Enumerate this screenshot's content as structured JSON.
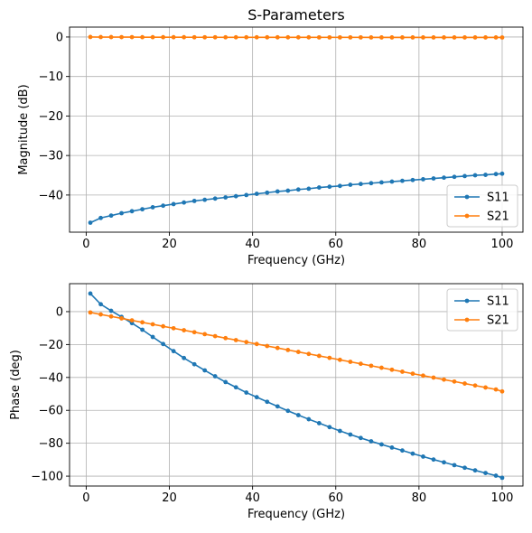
{
  "chart_data": [
    {
      "type": "line",
      "title": "S-Parameters",
      "xlabel": "Frequency (GHz)",
      "ylabel": "Magnitude (dB)",
      "xlim": [
        -4,
        105
      ],
      "ylim": [
        -49.4,
        2.5
      ],
      "xticks": [
        0,
        20,
        40,
        60,
        80,
        100
      ],
      "yticks": [
        0,
        -10,
        -20,
        -30,
        -40
      ],
      "xtick_labels": [
        "0",
        "20",
        "40",
        "60",
        "80",
        "100"
      ],
      "ytick_labels": [
        "0",
        "−10",
        "−20",
        "−30",
        "−40"
      ],
      "grid": true,
      "legend_position": "lower-right",
      "series": [
        {
          "name": "S11",
          "color": "#1f77b4",
          "x": [
            1,
            3.5,
            6,
            8.5,
            11,
            13.5,
            16,
            18.5,
            21,
            23.5,
            26,
            28.5,
            31,
            33.5,
            36,
            38.5,
            41,
            43.5,
            46,
            48.5,
            51,
            53.5,
            56,
            58.5,
            61,
            63.5,
            66,
            68.5,
            71,
            73.5,
            76,
            78.5,
            81,
            83.5,
            86,
            88.5,
            91,
            93.5,
            96,
            98.5,
            100
          ],
          "y": [
            -47.0,
            -45.8,
            -45.2,
            -44.6,
            -44.1,
            -43.6,
            -43.1,
            -42.7,
            -42.3,
            -41.9,
            -41.5,
            -41.2,
            -40.9,
            -40.6,
            -40.3,
            -40.0,
            -39.7,
            -39.4,
            -39.1,
            -38.9,
            -38.6,
            -38.4,
            -38.1,
            -37.9,
            -37.7,
            -37.4,
            -37.2,
            -37.0,
            -36.8,
            -36.6,
            -36.4,
            -36.2,
            -36.0,
            -35.8,
            -35.6,
            -35.4,
            -35.2,
            -35.0,
            -34.9,
            -34.7,
            -34.6
          ]
        },
        {
          "name": "S21",
          "color": "#ff7f0e",
          "x": [
            1,
            3.5,
            6,
            8.5,
            11,
            13.5,
            16,
            18.5,
            21,
            23.5,
            26,
            28.5,
            31,
            33.5,
            36,
            38.5,
            41,
            43.5,
            46,
            48.5,
            51,
            53.5,
            56,
            58.5,
            61,
            63.5,
            66,
            68.5,
            71,
            73.5,
            76,
            78.5,
            81,
            83.5,
            86,
            88.5,
            91,
            93.5,
            96,
            98.5,
            100
          ],
          "y": [
            0.0,
            -0.02,
            -0.03,
            -0.04,
            -0.04,
            -0.05,
            -0.05,
            -0.06,
            -0.06,
            -0.06,
            -0.07,
            -0.07,
            -0.07,
            -0.08,
            -0.08,
            -0.08,
            -0.08,
            -0.09,
            -0.09,
            -0.09,
            -0.09,
            -0.09,
            -0.1,
            -0.1,
            -0.1,
            -0.1,
            -0.1,
            -0.11,
            -0.11,
            -0.11,
            -0.11,
            -0.11,
            -0.11,
            -0.12,
            -0.12,
            -0.12,
            -0.12,
            -0.12,
            -0.12,
            -0.12,
            -0.13
          ]
        }
      ]
    },
    {
      "type": "line",
      "title": "",
      "xlabel": "Frequency (GHz)",
      "ylabel": "Phase (deg)",
      "xlim": [
        -4,
        105
      ],
      "ylim": [
        -106,
        17
      ],
      "xticks": [
        0,
        20,
        40,
        60,
        80,
        100
      ],
      "yticks": [
        0,
        -20,
        -40,
        -60,
        -80,
        -100
      ],
      "xtick_labels": [
        "0",
        "20",
        "40",
        "60",
        "80",
        "100"
      ],
      "ytick_labels": [
        "0",
        "−20",
        "−40",
        "−60",
        "−80",
        "−100"
      ],
      "grid": true,
      "legend_position": "upper-right",
      "series": [
        {
          "name": "S11",
          "color": "#1f77b4",
          "x": [
            1,
            3.5,
            6,
            8.5,
            11,
            13.5,
            16,
            18.5,
            21,
            23.5,
            26,
            28.5,
            31,
            33.5,
            36,
            38.5,
            41,
            43.5,
            46,
            48.5,
            51,
            53.5,
            56,
            58.5,
            61,
            63.5,
            66,
            68.5,
            71,
            73.5,
            76,
            78.5,
            81,
            83.5,
            86,
            88.5,
            91,
            93.5,
            96,
            98.5,
            100
          ],
          "y": [
            11.0,
            4.5,
            0.5,
            -3.2,
            -7.0,
            -11.0,
            -15.4,
            -19.7,
            -24.0,
            -28.2,
            -32.0,
            -35.7,
            -39.3,
            -42.8,
            -46.0,
            -49.2,
            -52.0,
            -54.8,
            -57.6,
            -60.3,
            -62.9,
            -65.4,
            -67.8,
            -70.2,
            -72.5,
            -74.7,
            -76.8,
            -78.8,
            -80.7,
            -82.6,
            -84.4,
            -86.3,
            -88.1,
            -89.9,
            -91.6,
            -93.3,
            -94.9,
            -96.5,
            -98.1,
            -99.7,
            -101.0
          ]
        },
        {
          "name": "S21",
          "color": "#ff7f0e",
          "x": [
            1,
            3.5,
            6,
            8.5,
            11,
            13.5,
            16,
            18.5,
            21,
            23.5,
            26,
            28.5,
            31,
            33.5,
            36,
            38.5,
            41,
            43.5,
            46,
            48.5,
            51,
            53.5,
            56,
            58.5,
            61,
            63.5,
            66,
            68.5,
            71,
            73.5,
            76,
            78.5,
            81,
            83.5,
            86,
            88.5,
            91,
            93.5,
            96,
            98.5,
            100
          ],
          "y": [
            -0.5,
            -1.7,
            -2.9,
            -4.1,
            -5.3,
            -6.5,
            -7.7,
            -8.9,
            -10.1,
            -11.3,
            -12.5,
            -13.7,
            -14.9,
            -16.1,
            -17.3,
            -18.5,
            -19.7,
            -20.9,
            -22.1,
            -23.3,
            -24.5,
            -25.7,
            -26.9,
            -28.1,
            -29.3,
            -30.5,
            -31.7,
            -32.9,
            -34.1,
            -35.3,
            -36.5,
            -37.7,
            -38.9,
            -40.1,
            -41.3,
            -42.5,
            -43.7,
            -44.9,
            -46.1,
            -47.3,
            -48.5
          ]
        }
      ]
    }
  ]
}
